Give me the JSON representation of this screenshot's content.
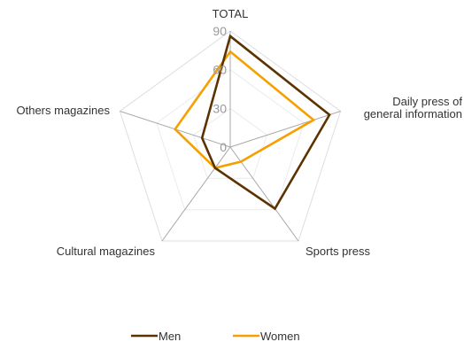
{
  "chart_data": {
    "type": "radar",
    "categories": [
      "TOTAL",
      "Daily press of general information",
      "Sports press",
      "Cultural magazines",
      "Others magazines"
    ],
    "category_lines": [
      [
        "TOTAL"
      ],
      [
        "Daily press of",
        "general information"
      ],
      [
        "Sports press"
      ],
      [
        "Cultural magazines"
      ],
      [
        "Others magazines"
      ]
    ],
    "radial_range": [
      0,
      90
    ],
    "ticks": [
      0,
      30,
      60,
      90
    ],
    "tick_labels": [
      "0",
      "30",
      "60",
      "90"
    ],
    "series": [
      {
        "name": "Men",
        "values": [
          86,
          81,
          59,
          20,
          23
        ],
        "color": "#5c3200"
      },
      {
        "name": "Women",
        "values": [
          74,
          68,
          14,
          20,
          45
        ],
        "color": "#f5a000"
      }
    ],
    "legend_position": "bottom"
  }
}
